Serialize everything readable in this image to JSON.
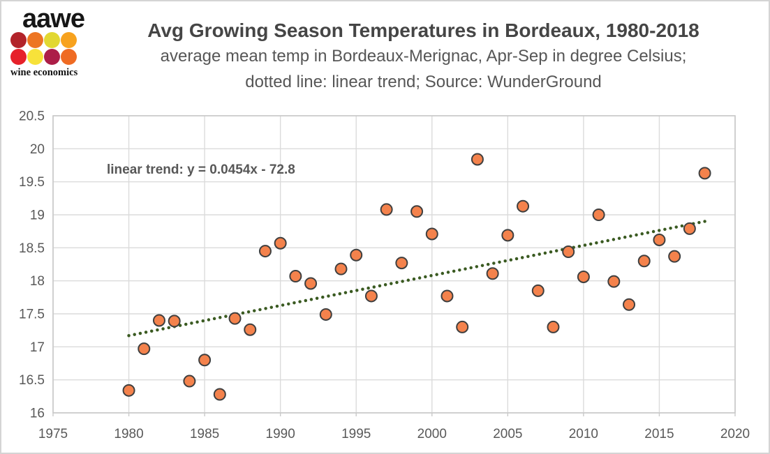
{
  "logo": {
    "wordmark": "aawe",
    "tagline": "wine economics",
    "dot_colors": [
      "#B2232A",
      "#ED7523",
      "#E2D832",
      "#F7A21E",
      "#E6212A",
      "#F7E23A",
      "#AC1E48",
      "#EF6B23"
    ]
  },
  "chart_data": {
    "type": "scatter",
    "title": "Avg Growing Season Temperatures in Bordeaux, 1980-2018",
    "subtitle_line1": "average mean temp in Bordeaux-Merignac, Apr-Sep in degree Celsius;",
    "subtitle_line2": "dotted line: linear trend; Source: WunderGround",
    "annotation": "linear trend: y = 0.0454x - 72.8",
    "xlabel": "",
    "ylabel": "",
    "xlim": [
      1975,
      2020
    ],
    "ylim": [
      16,
      20.5
    ],
    "x_ticks": [
      1975,
      1980,
      1985,
      1990,
      1995,
      2000,
      2005,
      2010,
      2015,
      2020
    ],
    "y_ticks": [
      16,
      16.5,
      17,
      17.5,
      18,
      18.5,
      19,
      19.5,
      20,
      20.5
    ],
    "grid": true,
    "legend": "none",
    "x": [
      1980,
      1981,
      1982,
      1983,
      1984,
      1985,
      1986,
      1987,
      1988,
      1989,
      1990,
      1991,
      1992,
      1993,
      1994,
      1995,
      1996,
      1997,
      1998,
      1999,
      2000,
      2001,
      2002,
      2003,
      2004,
      2005,
      2006,
      2007,
      2008,
      2009,
      2010,
      2011,
      2012,
      2013,
      2014,
      2015,
      2016,
      2017,
      2018
    ],
    "y": [
      16.34,
      16.97,
      17.4,
      17.39,
      16.48,
      16.8,
      16.28,
      17.43,
      17.26,
      18.45,
      18.57,
      18.07,
      17.96,
      17.49,
      18.18,
      18.39,
      17.77,
      19.08,
      18.27,
      19.05,
      18.71,
      17.77,
      17.3,
      19.84,
      18.11,
      18.69,
      19.13,
      17.85,
      17.3,
      18.44,
      18.06,
      19.0,
      17.99,
      17.64,
      18.3,
      18.62,
      18.37,
      18.79,
      19.63
    ],
    "trend": {
      "slope": 0.0454,
      "intercept": -72.8,
      "style": "dotted",
      "color": "#3A5A21",
      "x_start": 1980,
      "y_start": 17.17,
      "x_end": 2018,
      "y_end": 18.9
    },
    "colors": {
      "marker_fill": "#F4824C",
      "marker_edge": "#3F3F3F",
      "gridline": "#DBDBDB",
      "axis_border": "#C9C9C9",
      "tick_label": "#595959"
    }
  }
}
